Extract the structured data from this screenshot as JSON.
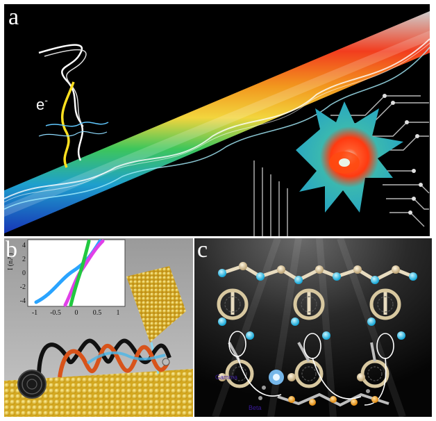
{
  "figure": {
    "panel_a": {
      "label": "a",
      "electron_label": "e",
      "electron_superscript": "-"
    },
    "panel_b": {
      "label": "b",
      "inset": {
        "ylabel": "I (nA)",
        "yticks": [
          "4",
          "2",
          "0",
          "-2",
          "-4"
        ],
        "xticks": [
          "-1",
          "-0.5",
          "0",
          "0.5",
          "1"
        ],
        "curve_colors": [
          "#2aa4ff",
          "#e040e8",
          "#22c840"
        ]
      }
    },
    "panel_c": {
      "label": "c",
      "gamma_label": "Gamma",
      "beta_label": "Beta"
    }
  }
}
